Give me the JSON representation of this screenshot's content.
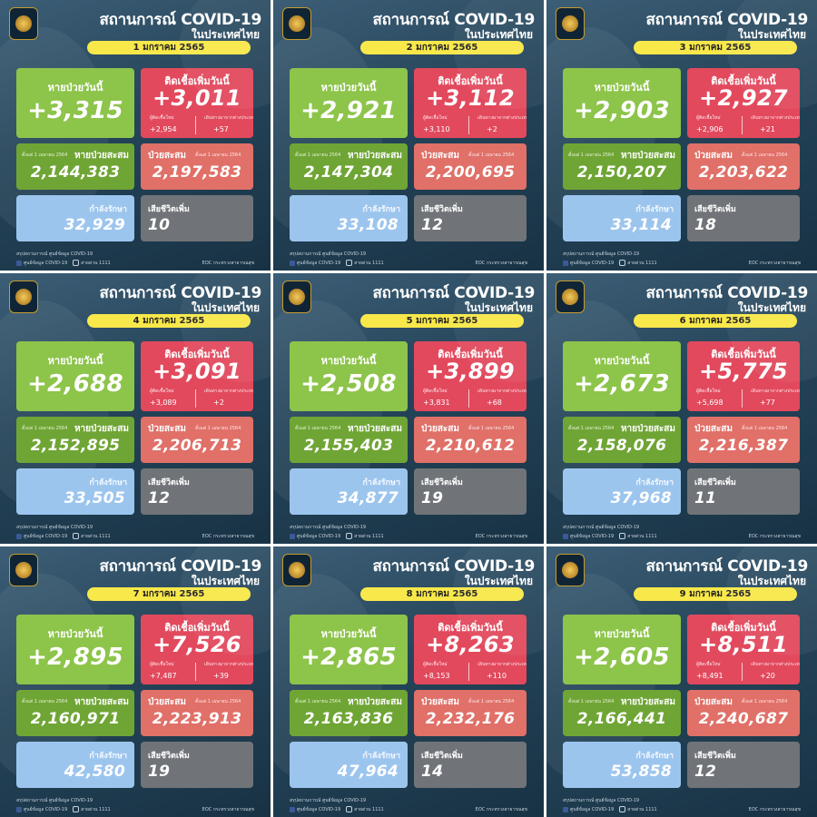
{
  "common": {
    "title": "สถานการณ์ COVID-19",
    "subtitle": "ในประเทศไทย",
    "recovered_today_label": "หายป่วยวันนี้",
    "new_cases_label": "ติดเชื้อเพิ่มวันนี้",
    "domestic_label": "ผู้ติดเชื้อใหม่",
    "imported_label": "เดินทางมาจากต่างประเทศ",
    "cumulative_recovered_label": "หายป่วยสะสม",
    "cumulative_cases_label": "ป่วยสะสม",
    "since_label": "ตั้งแต่ 1 เมษายน 2564",
    "in_treatment_label": "กำลังรักษา",
    "deaths_label": "เสียชีวิตเพิ่ม",
    "footer_source": "สรุปสถานการณ์ ศูนย์ข้อมูล COVID-19",
    "footer_page": "ศูนย์ข้อมูล COVID-19",
    "footer_hotline": "สายด่วน 1111",
    "footer_org": "EOC กระทรวงสาธารณสุข"
  },
  "panels": [
    {
      "date": "1 มกราคม 2565",
      "recovered": "+3,315",
      "new_cases": "+3,011",
      "domestic": "+2,954",
      "imported": "+57",
      "cumulative_recovered": "2,144,383",
      "cumulative_cases": "2,197,583",
      "in_treatment": "32,929",
      "deaths": "10"
    },
    {
      "date": "2 มกราคม 2565",
      "recovered": "+2,921",
      "new_cases": "+3,112",
      "domestic": "+3,110",
      "imported": "+2",
      "cumulative_recovered": "2,147,304",
      "cumulative_cases": "2,200,695",
      "in_treatment": "33,108",
      "deaths": "12"
    },
    {
      "date": "3 มกราคม 2565",
      "recovered": "+2,903",
      "new_cases": "+2,927",
      "domestic": "+2,906",
      "imported": "+21",
      "cumulative_recovered": "2,150,207",
      "cumulative_cases": "2,203,622",
      "in_treatment": "33,114",
      "deaths": "18"
    },
    {
      "date": "4 มกราคม 2565",
      "recovered": "+2,688",
      "new_cases": "+3,091",
      "domestic": "+3,089",
      "imported": "+2",
      "cumulative_recovered": "2,152,895",
      "cumulative_cases": "2,206,713",
      "in_treatment": "33,505",
      "deaths": "12"
    },
    {
      "date": "5 มกราคม 2565",
      "recovered": "+2,508",
      "new_cases": "+3,899",
      "domestic": "+3,831",
      "imported": "+68",
      "cumulative_recovered": "2,155,403",
      "cumulative_cases": "2,210,612",
      "in_treatment": "34,877",
      "deaths": "19"
    },
    {
      "date": "6 มกราคม 2565",
      "recovered": "+2,673",
      "new_cases": "+5,775",
      "domestic": "+5,698",
      "imported": "+77",
      "cumulative_recovered": "2,158,076",
      "cumulative_cases": "2,216,387",
      "in_treatment": "37,968",
      "deaths": "11"
    },
    {
      "date": "7 มกราคม 2565",
      "recovered": "+2,895",
      "new_cases": "+7,526",
      "domestic": "+7,487",
      "imported": "+39",
      "cumulative_recovered": "2,160,971",
      "cumulative_cases": "2,223,913",
      "in_treatment": "42,580",
      "deaths": "19"
    },
    {
      "date": "8 มกราคม 2565",
      "recovered": "+2,865",
      "new_cases": "+8,263",
      "domestic": "+8,153",
      "imported": "+110",
      "cumulative_recovered": "2,163,836",
      "cumulative_cases": "2,232,176",
      "in_treatment": "47,964",
      "deaths": "14"
    },
    {
      "date": "9 มกราคม 2565",
      "recovered": "+2,605",
      "new_cases": "+8,511",
      "domestic": "+8,491",
      "imported": "+20",
      "cumulative_recovered": "2,166,441",
      "cumulative_cases": "2,240,687",
      "in_treatment": "53,858",
      "deaths": "12"
    }
  ]
}
